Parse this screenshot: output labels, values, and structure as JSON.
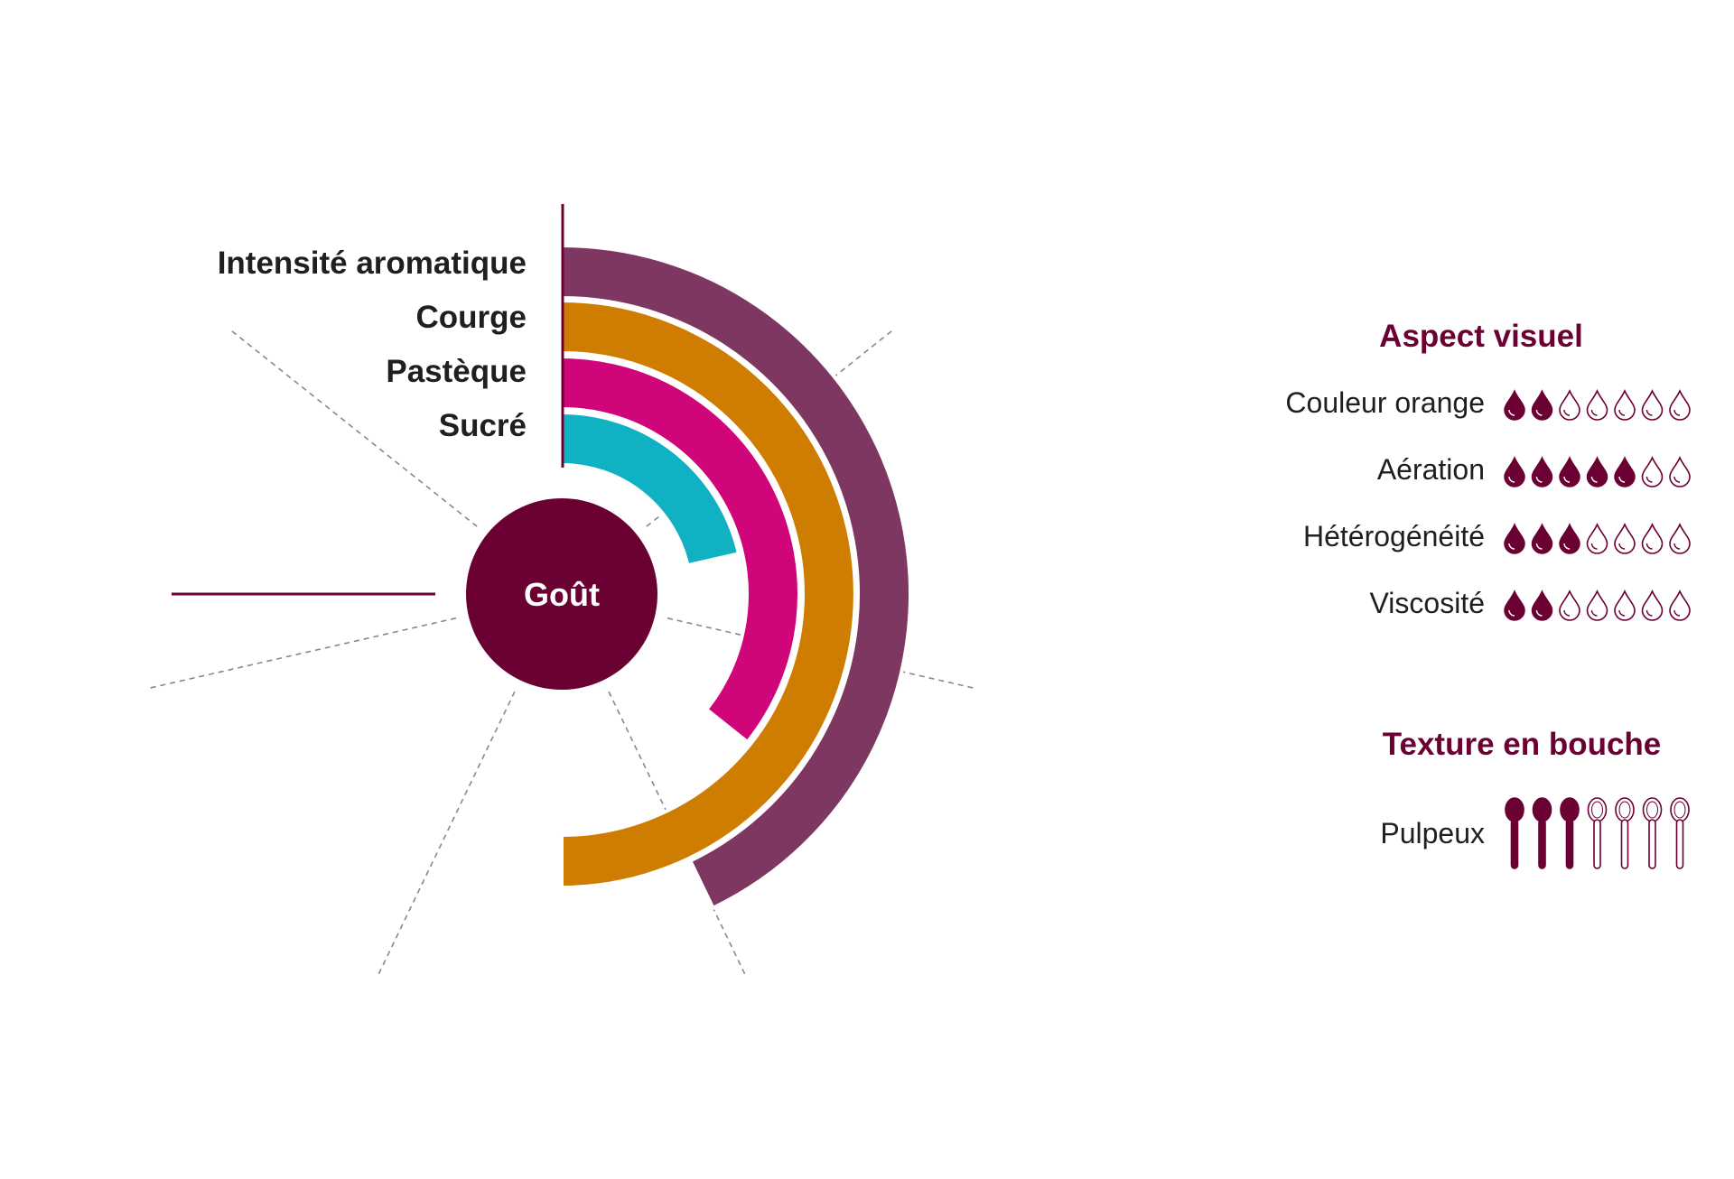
{
  "colors": {
    "primary": "#6b0033",
    "intensite": "#7d3760",
    "courge": "#cf7d00",
    "pasteque": "#d0057a",
    "sucre": "#10b1c3",
    "guide": "#888888"
  },
  "chart_data": {
    "type": "radial-bar",
    "center_label": "Goût",
    "scale_max": 7,
    "series": [
      {
        "name": "Intensité aromatique",
        "value": 3,
        "color_key": "intensite"
      },
      {
        "name": "Courge",
        "value": 3.5,
        "color_key": "courge"
      },
      {
        "name": "Pastèque",
        "value": 2.5,
        "color_key": "pasteque"
      },
      {
        "name": "Sucré",
        "value": 1.5,
        "color_key": "sucre"
      }
    ]
  },
  "aspect_visuel": {
    "title": "Aspect visuel",
    "icon": "drop-icon",
    "max": 7,
    "rows": [
      {
        "label": "Couleur orange",
        "value": 2
      },
      {
        "label": "Aération",
        "value": 5
      },
      {
        "label": "Hétérogénéité",
        "value": 3
      },
      {
        "label": "Viscosité",
        "value": 2
      }
    ]
  },
  "texture": {
    "title": "Texture en bouche",
    "icon": "spoon-icon",
    "max": 7,
    "rows": [
      {
        "label": "Pulpeux",
        "value": 3
      }
    ]
  }
}
